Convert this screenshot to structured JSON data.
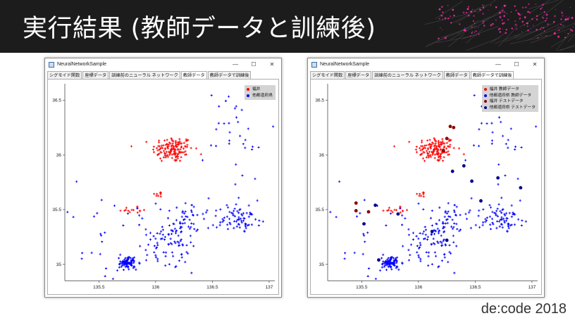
{
  "slide": {
    "title": "実行結果 (教師データと訓練後)",
    "footer": "de:code 2018"
  },
  "windows": [
    {
      "title": "NeuralNetworkSample",
      "controls": [
        "—",
        "☐",
        "✕"
      ],
      "tabs": [
        {
          "label": "シグモイド関数",
          "active": false
        },
        {
          "label": "座標データ",
          "active": false
        },
        {
          "label": "訓練前のニューラル ネットワーク",
          "active": false
        },
        {
          "label": "教師データ",
          "active": true
        },
        {
          "label": "教師データで訓練後",
          "active": false
        }
      ],
      "legend": [
        {
          "label": "福井",
          "color": "#ff0000",
          "shape": "plus"
        },
        {
          "label": "他都道府県",
          "color": "#0000ff",
          "shape": "plus"
        }
      ]
    },
    {
      "title": "NeuralNetworkSample",
      "controls": [
        "—",
        "☐",
        "✕"
      ],
      "tabs": [
        {
          "label": "シグモイド関数",
          "active": false
        },
        {
          "label": "座標データ",
          "active": false
        },
        {
          "label": "訓練前のニューラル ネットワーク",
          "active": false
        },
        {
          "label": "教師データ",
          "active": false
        },
        {
          "label": "教師データで訓練後",
          "active": true
        }
      ],
      "legend": [
        {
          "label": "福井 教師データ",
          "color": "#ff0000",
          "shape": "plus"
        },
        {
          "label": "他都道府県 教師データ",
          "color": "#0000ff",
          "shape": "plus"
        },
        {
          "label": "福井 テストデータ",
          "color": "#8b0000",
          "shape": "dot"
        },
        {
          "label": "他都道府県 テストデータ",
          "color": "#00008b",
          "shape": "dot"
        }
      ]
    }
  ],
  "chart_data": [
    {
      "type": "scatter",
      "xlim": [
        135.2,
        137.05
      ],
      "ylim": [
        34.85,
        36.65
      ],
      "xticks": [
        "135.5",
        "136",
        "136.5",
        "137"
      ],
      "yticks": [
        "35",
        "35.5",
        "36",
        "36.5"
      ],
      "grid": false,
      "legend_position": "top-right",
      "series": [
        {
          "name": "福井",
          "color": "#ff0000",
          "clusters": [
            {
              "cx": 136.15,
              "cy": 36.05,
              "sx": 0.09,
              "sy": 0.06,
              "n": 140
            },
            {
              "cx": 136.03,
              "cy": 35.64,
              "sx": 0.02,
              "sy": 0.012,
              "n": 8
            },
            {
              "cx": 135.8,
              "cy": 35.5,
              "sx": 0.07,
              "sy": 0.02,
              "n": 14
            }
          ]
        },
        {
          "name": "他都道府県",
          "color": "#0000ff",
          "clusters": [
            {
              "cx": 135.75,
              "cy": 35.02,
              "sx": 0.04,
              "sy": 0.03,
              "n": 90
            },
            {
              "cx": 136.1,
              "cy": 35.15,
              "sx": 0.13,
              "sy": 0.1,
              "n": 70
            },
            {
              "cx": 136.25,
              "cy": 35.4,
              "sx": 0.09,
              "sy": 0.1,
              "n": 50
            },
            {
              "cx": 136.72,
              "cy": 35.42,
              "sx": 0.12,
              "sy": 0.07,
              "n": 80
            },
            {
              "cx": 136.75,
              "cy": 36.2,
              "sx": 0.14,
              "sy": 0.22,
              "n": 35
            },
            {
              "cx": 135.6,
              "cy": 35.2,
              "sx": 0.25,
              "sy": 0.2,
              "n": 40
            }
          ]
        }
      ]
    },
    {
      "type": "scatter",
      "xlim": [
        135.2,
        137.05
      ],
      "ylim": [
        34.85,
        36.65
      ],
      "xticks": [
        "135.5",
        "136",
        "136.5",
        "137"
      ],
      "yticks": [
        "35",
        "35.5",
        "36",
        "36.5"
      ],
      "grid": false,
      "legend_position": "top-right",
      "series": [
        {
          "name": "福井 教師データ",
          "color": "#ff0000",
          "clusters": [
            {
              "cx": 136.15,
              "cy": 36.05,
              "sx": 0.09,
              "sy": 0.06,
              "n": 140
            },
            {
              "cx": 136.03,
              "cy": 35.64,
              "sx": 0.02,
              "sy": 0.012,
              "n": 8
            },
            {
              "cx": 135.8,
              "cy": 35.5,
              "sx": 0.07,
              "sy": 0.02,
              "n": 14
            }
          ]
        },
        {
          "name": "他都道府県 教師データ",
          "color": "#0000ff",
          "clusters": [
            {
              "cx": 135.75,
              "cy": 35.02,
              "sx": 0.04,
              "sy": 0.03,
              "n": 90
            },
            {
              "cx": 136.1,
              "cy": 35.15,
              "sx": 0.13,
              "sy": 0.1,
              "n": 70
            },
            {
              "cx": 136.25,
              "cy": 35.4,
              "sx": 0.09,
              "sy": 0.1,
              "n": 50
            },
            {
              "cx": 136.72,
              "cy": 35.42,
              "sx": 0.12,
              "sy": 0.07,
              "n": 80
            },
            {
              "cx": 136.75,
              "cy": 36.2,
              "sx": 0.14,
              "sy": 0.22,
              "n": 35
            },
            {
              "cx": 135.6,
              "cy": 35.2,
              "sx": 0.25,
              "sy": 0.2,
              "n": 40
            }
          ]
        },
        {
          "name": "福井 テストデータ",
          "color": "#8b0000",
          "points": [
            [
              135.45,
              35.56
            ],
            [
              135.45,
              35.49
            ],
            [
              135.56,
              35.48
            ],
            [
              136.25,
              36.15
            ],
            [
              136.22,
              36.04
            ],
            [
              136.28,
              36.26
            ],
            [
              136.31,
              36.25
            ]
          ]
        },
        {
          "name": "他都道府県 テストデータ",
          "color": "#00008b",
          "points": [
            [
              135.52,
              35.37
            ],
            [
              135.62,
              35.54
            ],
            [
              135.82,
              35.46
            ],
            [
              136.3,
              35.85
            ],
            [
              136.47,
              35.76
            ],
            [
              136.7,
              35.79
            ],
            [
              136.55,
              35.58
            ],
            [
              136.25,
              35.22
            ],
            [
              135.65,
              35.04
            ],
            [
              136.12,
              35.3
            ],
            [
              136.4,
              35.9
            ],
            [
              136.9,
              35.7
            ]
          ]
        }
      ]
    }
  ]
}
